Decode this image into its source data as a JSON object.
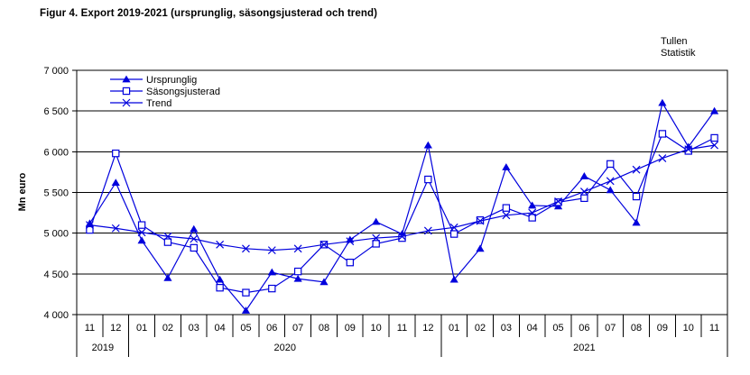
{
  "title": "Figur 4. Export 2019-2021 (ursprunglig, säsongsjusterad och trend)",
  "source_label": "Tullen\nStatistik",
  "colors": {
    "ink": "#000000",
    "series": "#0000dd",
    "plot_bg": "#ffffff"
  },
  "chart_data": {
    "type": "line",
    "title": "Figur 4. Export 2019-2021 (ursprunglig, säsongsjusterad och trend)",
    "ylabel": "Mn euro",
    "ylim": [
      4000,
      7000
    ],
    "ytick_step": 500,
    "ytick_labels": [
      "4 000",
      "4 500",
      "5 000",
      "5 500",
      "6 000",
      "6 500",
      "7 000"
    ],
    "grid": true,
    "legend_position": "top-left-inside",
    "months": [
      "11",
      "12",
      "01",
      "02",
      "03",
      "04",
      "05",
      "06",
      "07",
      "08",
      "09",
      "10",
      "11",
      "12",
      "01",
      "02",
      "03",
      "04",
      "05",
      "06",
      "07",
      "08",
      "09",
      "10",
      "11"
    ],
    "year_groups": [
      {
        "label": "2019",
        "span": 2
      },
      {
        "label": "2020",
        "span": 12
      },
      {
        "label": "2021",
        "span": 11
      }
    ],
    "series": [
      {
        "name": "Ursprunglig",
        "marker": "triangle",
        "values": [
          5120,
          5620,
          4910,
          4450,
          5050,
          4430,
          4050,
          4520,
          4440,
          4400,
          4920,
          5140,
          4990,
          6080,
          4430,
          4810,
          5810,
          5340,
          5330,
          5700,
          5530,
          5130,
          6600,
          6060,
          6500
        ]
      },
      {
        "name": "Säsongsjusterad",
        "marker": "square",
        "values": [
          5040,
          5980,
          5100,
          4890,
          4820,
          4330,
          4270,
          4320,
          4530,
          4860,
          4640,
          4870,
          4940,
          5660,
          4990,
          5160,
          5310,
          5190,
          5380,
          5430,
          5850,
          5450,
          6220,
          6010,
          6170
        ]
      },
      {
        "name": "Trend",
        "marker": "x",
        "values": [
          5100,
          5060,
          5010,
          4960,
          4930,
          4860,
          4810,
          4790,
          4810,
          4860,
          4900,
          4940,
          4960,
          5030,
          5070,
          5150,
          5220,
          5250,
          5390,
          5510,
          5640,
          5780,
          5920,
          6030,
          6080
        ]
      }
    ]
  }
}
